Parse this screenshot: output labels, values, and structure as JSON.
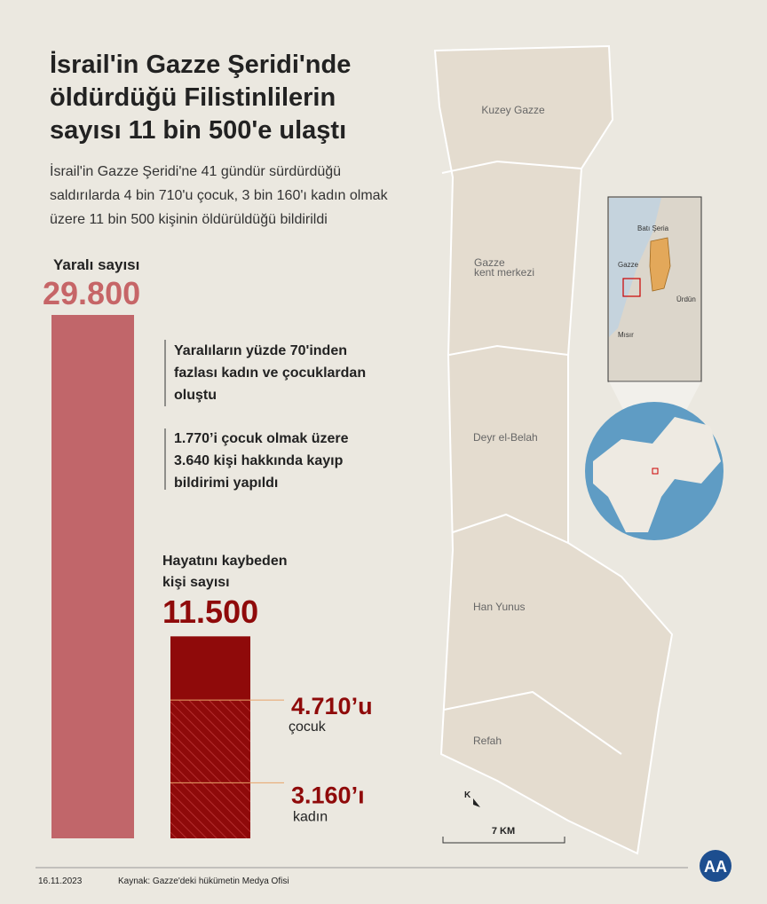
{
  "header": {
    "title": [
      "İsrail'in Gazze Şeridi'nde",
      "öldürdüğü Filistinlilerin",
      "sayısı 11 bin 500'e ulaştı"
    ],
    "subtitle": [
      "İsrail'in Gazze Şeridi'ne 41 gündür sürdürdüğü",
      "saldırılarda 4 bin 710'u çocuk, 3 bin 160'ı kadın olmak",
      "üzere 11 bin 500 kişinin öldürüldüğü bildirildi"
    ]
  },
  "wounded": {
    "label": "Yaralı sayısı",
    "count": {
      "value": 29800,
      "label": "29.800"
    },
    "notes": [
      [
        "Yaralıların yüzde 70'inden",
        "fazlası kadın ve çocuklardan",
        "oluştu"
      ],
      [
        "1.770’i çocuk olmak üzere",
        "3.640 kişi hakkında kayıp",
        "bildirimi yapıldı"
      ]
    ]
  },
  "killed": {
    "label": [
      "Hayatını kaybeden",
      "kişi sayısı"
    ],
    "count": {
      "value": 11500,
      "label": "11.500"
    },
    "children": {
      "value": 4710,
      "label": "4.710’u",
      "caption": "çocuk"
    },
    "women": {
      "value": 3160,
      "label": "3.160’ı",
      "caption": "kadın"
    }
  },
  "map": {
    "regions": [
      [
        "Kuzey Gazze"
      ],
      [
        "Gazze",
        "kent merkezi"
      ],
      [
        "Deyr el-Belah"
      ],
      [
        "Han Yunus"
      ],
      [
        "Refah"
      ]
    ],
    "inset": [
      "Batı Şeria",
      "Gazze",
      "Ürdün",
      "Mısır"
    ],
    "north": "K",
    "scale": "7 KM"
  },
  "footer": {
    "date": "16.11.2023",
    "source": "Kaynak: Gazze'deki hükümetin Medya Ofisi",
    "logo": "AA"
  }
}
